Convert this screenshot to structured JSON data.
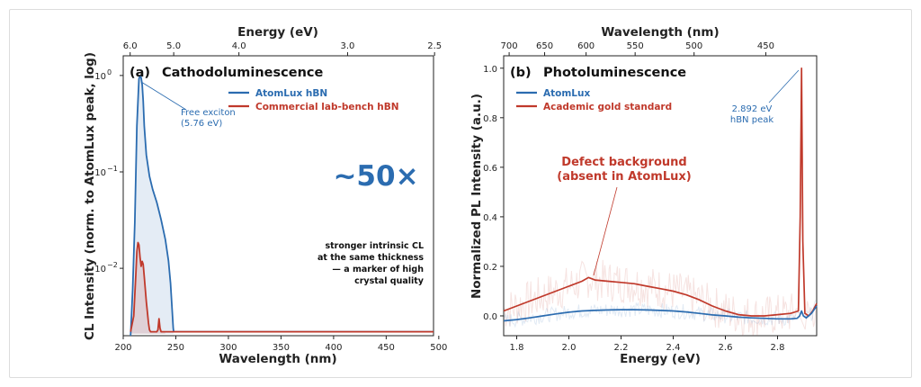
{
  "chart_data": [
    {
      "type": "line",
      "panel": "(a)",
      "title": "Cathodoluminescence",
      "xlabel": "Wavelength (nm)",
      "ylabel": "CL Intensity (norm. to AtomLux peak, log)",
      "top_xlabel": "Energy (eV)",
      "x_ticks": [
        "200",
        "250",
        "300",
        "350",
        "400",
        "450",
        "500"
      ],
      "top_ticks": [
        {
          "label": "6.0",
          "x": 206.6
        },
        {
          "label": "5.0",
          "x": 248.0
        },
        {
          "label": "4.0",
          "x": 310.0
        },
        {
          "label": "3.0",
          "x": 413.3
        },
        {
          "label": "2.5",
          "x": 496.0
        }
      ],
      "y_ticks": [
        {
          "base": "10",
          "exp": "0",
          "value": 1
        },
        {
          "base": "10",
          "exp": "−1",
          "value": 0.1
        },
        {
          "base": "10",
          "exp": "−2",
          "value": 0.01
        }
      ],
      "xlim": [
        200,
        495
      ],
      "ylim": [
        0.002,
        1.6
      ],
      "yscale": "log",
      "legend_position": "top-right",
      "series": [
        {
          "name": "AtomLux hBN",
          "color": "#2b6cb0",
          "x": [
            207,
            209,
            211,
            213,
            215,
            216,
            217,
            218,
            219,
            220,
            222,
            225,
            228,
            232,
            236,
            240,
            243,
            245,
            246.5,
            247.5,
            248,
            260,
            300,
            350,
            400,
            450,
            495
          ],
          "y": [
            0.002,
            0.006,
            0.03,
            0.3,
            0.92,
            1.0,
            0.95,
            0.8,
            0.55,
            0.3,
            0.15,
            0.09,
            0.066,
            0.048,
            0.032,
            0.02,
            0.012,
            0.007,
            0.0037,
            0.0024,
            0.0022,
            0.0022,
            0.0022,
            0.0022,
            0.0022,
            0.0022,
            0.0022
          ]
        },
        {
          "name": "Commercial lab-bench hBN",
          "color": "#c0392b",
          "x": [
            207,
            210,
            212,
            213,
            214,
            215,
            216,
            217,
            218,
            219,
            220,
            221,
            222,
            223,
            224,
            225,
            226,
            227,
            228,
            229,
            230,
            231,
            232,
            233,
            234,
            235,
            236,
            240,
            260,
            300,
            350,
            400,
            450,
            495
          ],
          "y": [
            0.0022,
            0.0032,
            0.0085,
            0.015,
            0.0185,
            0.0175,
            0.013,
            0.0105,
            0.0118,
            0.011,
            0.0082,
            0.006,
            0.0045,
            0.0035,
            0.0027,
            0.0023,
            0.0022,
            0.0022,
            0.0022,
            0.0022,
            0.0022,
            0.0022,
            0.0022,
            0.0023,
            0.003,
            0.0024,
            0.0022,
            0.0022,
            0.0022,
            0.0022,
            0.0022,
            0.0022,
            0.0022,
            0.0022
          ]
        }
      ],
      "annotations": {
        "peak_label": [
          "Free exciton",
          "(5.76 eV)"
        ],
        "big_ratio": "~50×",
        "note": [
          "stronger intrinsic CL",
          "at the same thickness",
          "— a marker of high",
          "crystal quality"
        ]
      }
    },
    {
      "type": "line",
      "panel": "(b)",
      "title": "Photoluminescence",
      "xlabel": "Energy (eV)",
      "ylabel": "Normalized PL Intensity (a.u.)",
      "top_xlabel": "Wavelength (nm)",
      "x_ticks": [
        "1.8",
        "2.0",
        "2.2",
        "2.4",
        "2.6",
        "2.8"
      ],
      "top_ticks": [
        {
          "label": "700",
          "x": 1.771
        },
        {
          "label": "650",
          "x": 1.907
        },
        {
          "label": "600",
          "x": 2.066
        },
        {
          "label": "550",
          "x": 2.254
        },
        {
          "label": "500",
          "x": 2.48
        },
        {
          "label": "450",
          "x": 2.755
        }
      ],
      "y_ticks": [
        "0.0",
        "0.2",
        "0.4",
        "0.6",
        "0.8",
        "1.0"
      ],
      "xlim": [
        1.75,
        2.95
      ],
      "ylim": [
        -0.08,
        1.05
      ],
      "legend_position": "top-left",
      "series": [
        {
          "name": "AtomLux",
          "color": "#2b6cb0",
          "x": [
            1.75,
            1.8,
            1.85,
            1.9,
            1.95,
            2.0,
            2.05,
            2.1,
            2.15,
            2.2,
            2.25,
            2.3,
            2.35,
            2.4,
            2.45,
            2.5,
            2.55,
            2.6,
            2.65,
            2.7,
            2.75,
            2.8,
            2.85,
            2.875,
            2.885,
            2.892,
            2.899,
            2.91,
            2.93,
            2.95
          ],
          "y": [
            -0.02,
            -0.015,
            -0.008,
            0.0,
            0.008,
            0.015,
            0.02,
            0.022,
            0.024,
            0.025,
            0.025,
            0.024,
            0.022,
            0.02,
            0.016,
            0.01,
            0.004,
            0.0,
            -0.005,
            -0.008,
            -0.01,
            -0.012,
            -0.012,
            -0.01,
            0.0,
            0.02,
            0.0,
            -0.008,
            0.01,
            0.04
          ]
        },
        {
          "name": "Academic gold standard",
          "color": "#c0392b",
          "x": [
            1.75,
            1.8,
            1.85,
            1.9,
            1.95,
            2.0,
            2.05,
            2.075,
            2.1,
            2.15,
            2.2,
            2.25,
            2.3,
            2.35,
            2.4,
            2.45,
            2.5,
            2.55,
            2.6,
            2.65,
            2.7,
            2.75,
            2.8,
            2.85,
            2.88,
            2.887,
            2.892,
            2.897,
            2.905,
            2.92,
            2.935,
            2.95
          ],
          "y": [
            0.02,
            0.04,
            0.06,
            0.08,
            0.1,
            0.12,
            0.14,
            0.155,
            0.145,
            0.14,
            0.135,
            0.13,
            0.12,
            0.11,
            0.1,
            0.085,
            0.065,
            0.04,
            0.02,
            0.005,
            0.0,
            0.0,
            0.005,
            0.01,
            0.02,
            0.4,
            1.0,
            0.3,
            0.01,
            0.0,
            0.02,
            0.05
          ]
        }
      ],
      "annotations": {
        "peak_label": [
          "2.892 eV",
          "hBN peak"
        ],
        "defect_label": [
          "Defect background",
          "(absent in AtomLux)"
        ]
      }
    }
  ]
}
